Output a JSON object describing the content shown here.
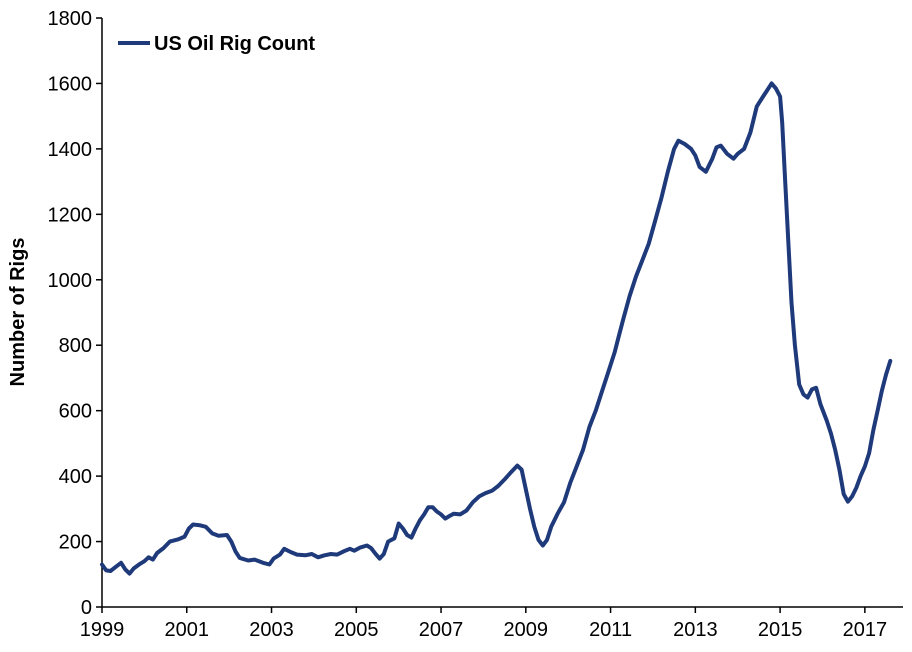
{
  "chart_data": {
    "type": "line",
    "title": "",
    "xlabel": "",
    "ylabel": "Number of Rigs",
    "xlim": [
      1999,
      2017.9
    ],
    "ylim": [
      0,
      1800
    ],
    "x_ticks": [
      "1999",
      "2001",
      "2003",
      "2005",
      "2007",
      "2009",
      "2011",
      "2013",
      "2015",
      "2017"
    ],
    "y_ticks": [
      "0",
      "200",
      "400",
      "600",
      "800",
      "1000",
      "1200",
      "1400",
      "1600",
      "1800"
    ],
    "grid": false,
    "legend": "top-left",
    "colors": {
      "series": "#1f3a7a",
      "axis": "#000000"
    },
    "series": [
      {
        "name": "US Oil Rig Count",
        "points": [
          [
            1999.0,
            130
          ],
          [
            1999.1,
            112
          ],
          [
            1999.2,
            110
          ],
          [
            1999.35,
            125
          ],
          [
            1999.45,
            135
          ],
          [
            1999.55,
            115
          ],
          [
            1999.65,
            102
          ],
          [
            1999.75,
            118
          ],
          [
            1999.9,
            132
          ],
          [
            2000.0,
            140
          ],
          [
            2000.1,
            152
          ],
          [
            2000.2,
            145
          ],
          [
            2000.3,
            165
          ],
          [
            2000.45,
            180
          ],
          [
            2000.6,
            200
          ],
          [
            2000.8,
            207
          ],
          [
            2000.95,
            215
          ],
          [
            2001.05,
            240
          ],
          [
            2001.15,
            252
          ],
          [
            2001.3,
            250
          ],
          [
            2001.45,
            245
          ],
          [
            2001.6,
            225
          ],
          [
            2001.75,
            218
          ],
          [
            2001.95,
            220
          ],
          [
            2002.05,
            200
          ],
          [
            2002.15,
            170
          ],
          [
            2002.25,
            150
          ],
          [
            2002.45,
            142
          ],
          [
            2002.6,
            145
          ],
          [
            2002.8,
            135
          ],
          [
            2002.95,
            130
          ],
          [
            2003.05,
            148
          ],
          [
            2003.2,
            160
          ],
          [
            2003.3,
            178
          ],
          [
            2003.45,
            168
          ],
          [
            2003.6,
            160
          ],
          [
            2003.8,
            158
          ],
          [
            2003.95,
            162
          ],
          [
            2004.1,
            152
          ],
          [
            2004.25,
            158
          ],
          [
            2004.4,
            162
          ],
          [
            2004.55,
            160
          ],
          [
            2004.7,
            170
          ],
          [
            2004.85,
            178
          ],
          [
            2004.95,
            172
          ],
          [
            2005.1,
            182
          ],
          [
            2005.25,
            188
          ],
          [
            2005.35,
            180
          ],
          [
            2005.45,
            163
          ],
          [
            2005.55,
            148
          ],
          [
            2005.65,
            162
          ],
          [
            2005.75,
            200
          ],
          [
            2005.9,
            210
          ],
          [
            2006.0,
            255
          ],
          [
            2006.1,
            240
          ],
          [
            2006.2,
            220
          ],
          [
            2006.3,
            212
          ],
          [
            2006.4,
            240
          ],
          [
            2006.5,
            265
          ],
          [
            2006.6,
            283
          ],
          [
            2006.7,
            305
          ],
          [
            2006.8,
            305
          ],
          [
            2006.9,
            292
          ],
          [
            2007.0,
            283
          ],
          [
            2007.1,
            270
          ],
          [
            2007.2,
            278
          ],
          [
            2007.3,
            285
          ],
          [
            2007.45,
            283
          ],
          [
            2007.6,
            295
          ],
          [
            2007.75,
            320
          ],
          [
            2007.9,
            338
          ],
          [
            2008.05,
            348
          ],
          [
            2008.2,
            355
          ],
          [
            2008.35,
            370
          ],
          [
            2008.5,
            390
          ],
          [
            2008.65,
            412
          ],
          [
            2008.8,
            432
          ],
          [
            2008.9,
            420
          ],
          [
            2009.0,
            360
          ],
          [
            2009.1,
            300
          ],
          [
            2009.2,
            245
          ],
          [
            2009.3,
            205
          ],
          [
            2009.4,
            188
          ],
          [
            2009.5,
            205
          ],
          [
            2009.6,
            245
          ],
          [
            2009.75,
            285
          ],
          [
            2009.9,
            320
          ],
          [
            2010.05,
            380
          ],
          [
            2010.2,
            430
          ],
          [
            2010.35,
            480
          ],
          [
            2010.5,
            550
          ],
          [
            2010.65,
            600
          ],
          [
            2010.8,
            660
          ],
          [
            2010.95,
            720
          ],
          [
            2011.1,
            780
          ],
          [
            2011.2,
            830
          ],
          [
            2011.3,
            880
          ],
          [
            2011.45,
            950
          ],
          [
            2011.6,
            1010
          ],
          [
            2011.75,
            1060
          ],
          [
            2011.9,
            1110
          ],
          [
            2012.05,
            1180
          ],
          [
            2012.2,
            1250
          ],
          [
            2012.35,
            1330
          ],
          [
            2012.5,
            1400
          ],
          [
            2012.6,
            1425
          ],
          [
            2012.75,
            1415
          ],
          [
            2012.9,
            1400
          ],
          [
            2013.0,
            1380
          ],
          [
            2013.1,
            1345
          ],
          [
            2013.25,
            1330
          ],
          [
            2013.4,
            1370
          ],
          [
            2013.5,
            1405
          ],
          [
            2013.6,
            1410
          ],
          [
            2013.75,
            1385
          ],
          [
            2013.9,
            1370
          ],
          [
            2014.0,
            1385
          ],
          [
            2014.15,
            1400
          ],
          [
            2014.3,
            1450
          ],
          [
            2014.45,
            1530
          ],
          [
            2014.6,
            1560
          ],
          [
            2014.7,
            1580
          ],
          [
            2014.8,
            1600
          ],
          [
            2014.9,
            1585
          ],
          [
            2015.0,
            1560
          ],
          [
            2015.05,
            1480
          ],
          [
            2015.12,
            1300
          ],
          [
            2015.2,
            1100
          ],
          [
            2015.27,
            930
          ],
          [
            2015.35,
            800
          ],
          [
            2015.45,
            680
          ],
          [
            2015.55,
            650
          ],
          [
            2015.65,
            640
          ],
          [
            2015.75,
            665
          ],
          [
            2015.85,
            670
          ],
          [
            2015.95,
            620
          ],
          [
            2016.1,
            570
          ],
          [
            2016.2,
            530
          ],
          [
            2016.3,
            480
          ],
          [
            2016.4,
            420
          ],
          [
            2016.5,
            345
          ],
          [
            2016.6,
            322
          ],
          [
            2016.7,
            338
          ],
          [
            2016.8,
            365
          ],
          [
            2016.9,
            400
          ],
          [
            2017.0,
            430
          ],
          [
            2017.1,
            470
          ],
          [
            2017.2,
            540
          ],
          [
            2017.3,
            600
          ],
          [
            2017.4,
            660
          ],
          [
            2017.5,
            710
          ],
          [
            2017.6,
            752
          ]
        ]
      }
    ]
  }
}
